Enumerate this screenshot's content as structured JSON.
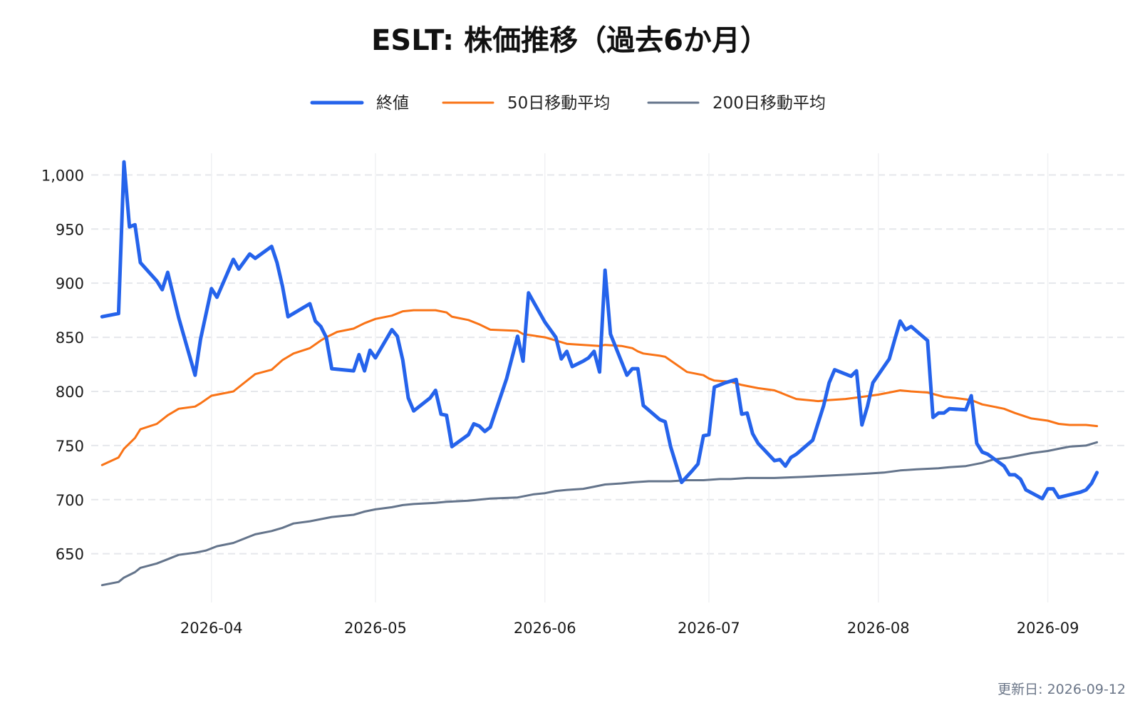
{
  "chart_data": {
    "type": "line",
    "title": "ESLT: 株価推移（過去6か月）",
    "xlabel": "",
    "ylabel": "",
    "updated": "更新日: 2026-09-12",
    "colors": {
      "close": "#2563eb",
      "ma50": "#f97316",
      "ma200": "#64748b",
      "grid": "#e5e7eb"
    },
    "ylim": [
      605,
      1020
    ],
    "y_ticks": [
      650,
      700,
      750,
      800,
      850,
      900,
      950,
      1000
    ],
    "y_tick_labels": [
      "650",
      "700",
      "750",
      "800",
      "850",
      "900",
      "950",
      "1,000"
    ],
    "xlim": [
      "2026-03-10",
      "2026-09-15"
    ],
    "x_ticks": [
      "2026-04-01",
      "2026-05-01",
      "2026-06-01",
      "2026-07-01",
      "2026-08-01",
      "2026-09-01"
    ],
    "x_tick_labels": [
      "2026-04",
      "2026-05",
      "2026-06",
      "2026-07",
      "2026-08",
      "2026-09"
    ],
    "grid": true,
    "legend_position": "top-center",
    "series": [
      {
        "name": "終値",
        "key": "close",
        "points": [
          [
            "2026-03-12",
            869
          ],
          [
            "2026-03-15",
            872
          ],
          [
            "2026-03-16",
            1012
          ],
          [
            "2026-03-17",
            952
          ],
          [
            "2026-03-18",
            954
          ],
          [
            "2026-03-19",
            919
          ],
          [
            "2026-03-22",
            902
          ],
          [
            "2026-03-23",
            894
          ],
          [
            "2026-03-24",
            910
          ],
          [
            "2026-03-26",
            868
          ],
          [
            "2026-03-29",
            815
          ],
          [
            "2026-03-30",
            848
          ],
          [
            "2026-04-01",
            895
          ],
          [
            "2026-04-02",
            887
          ],
          [
            "2026-04-05",
            922
          ],
          [
            "2026-04-06",
            913
          ],
          [
            "2026-04-08",
            927
          ],
          [
            "2026-04-09",
            923
          ],
          [
            "2026-04-12",
            934
          ],
          [
            "2026-04-13",
            919
          ],
          [
            "2026-04-14",
            897
          ],
          [
            "2026-04-15",
            869
          ],
          [
            "2026-04-19",
            881
          ],
          [
            "2026-04-20",
            865
          ],
          [
            "2026-04-21",
            860
          ],
          [
            "2026-04-22",
            850
          ],
          [
            "2026-04-23",
            821
          ],
          [
            "2026-04-27",
            819
          ],
          [
            "2026-04-28",
            834
          ],
          [
            "2026-04-29",
            819
          ],
          [
            "2026-04-30",
            838
          ],
          [
            "2026-05-01",
            831
          ],
          [
            "2026-05-04",
            857
          ],
          [
            "2026-05-05",
            851
          ],
          [
            "2026-05-06",
            829
          ],
          [
            "2026-05-07",
            794
          ],
          [
            "2026-05-08",
            782
          ],
          [
            "2026-05-11",
            794
          ],
          [
            "2026-05-12",
            801
          ],
          [
            "2026-05-13",
            779
          ],
          [
            "2026-05-14",
            778
          ],
          [
            "2026-05-15",
            749
          ],
          [
            "2026-05-18",
            760
          ],
          [
            "2026-05-19",
            770
          ],
          [
            "2026-05-20",
            768
          ],
          [
            "2026-05-21",
            763
          ],
          [
            "2026-05-22",
            767
          ],
          [
            "2026-05-25",
            812
          ],
          [
            "2026-05-27",
            851
          ],
          [
            "2026-05-28",
            828
          ],
          [
            "2026-05-29",
            891
          ],
          [
            "2026-05-30",
            882
          ],
          [
            "2026-06-01",
            864
          ],
          [
            "2026-06-03",
            850
          ],
          [
            "2026-06-04",
            830
          ],
          [
            "2026-06-05",
            837
          ],
          [
            "2026-06-06",
            823
          ],
          [
            "2026-06-08",
            828
          ],
          [
            "2026-06-09",
            831
          ],
          [
            "2026-06-10",
            837
          ],
          [
            "2026-06-11",
            818
          ],
          [
            "2026-06-12",
            912
          ],
          [
            "2026-06-13",
            853
          ],
          [
            "2026-06-16",
            815
          ],
          [
            "2026-06-17",
            821
          ],
          [
            "2026-06-18",
            821
          ],
          [
            "2026-06-19",
            787
          ],
          [
            "2026-06-22",
            774
          ],
          [
            "2026-06-23",
            772
          ],
          [
            "2026-06-24",
            749
          ],
          [
            "2026-06-26",
            716
          ],
          [
            "2026-06-28",
            727
          ],
          [
            "2026-06-29",
            733
          ],
          [
            "2026-06-30",
            759
          ],
          [
            "2026-07-01",
            760
          ],
          [
            "2026-07-02",
            804
          ],
          [
            "2026-07-04",
            808
          ],
          [
            "2026-07-06",
            811
          ],
          [
            "2026-07-07",
            779
          ],
          [
            "2026-07-08",
            780
          ],
          [
            "2026-07-09",
            761
          ],
          [
            "2026-07-10",
            752
          ],
          [
            "2026-07-13",
            736
          ],
          [
            "2026-07-14",
            737
          ],
          [
            "2026-07-15",
            731
          ],
          [
            "2026-07-16",
            739
          ],
          [
            "2026-07-17",
            742
          ],
          [
            "2026-07-20",
            755
          ],
          [
            "2026-07-22",
            787
          ],
          [
            "2026-07-23",
            808
          ],
          [
            "2026-07-24",
            820
          ],
          [
            "2026-07-27",
            814
          ],
          [
            "2026-07-28",
            819
          ],
          [
            "2026-07-29",
            769
          ],
          [
            "2026-07-30",
            786
          ],
          [
            "2026-07-31",
            808
          ],
          [
            "2026-08-03",
            830
          ],
          [
            "2026-08-04",
            848
          ],
          [
            "2026-08-05",
            865
          ],
          [
            "2026-08-06",
            857
          ],
          [
            "2026-08-07",
            860
          ],
          [
            "2026-08-10",
            847
          ],
          [
            "2026-08-11",
            776
          ],
          [
            "2026-08-12",
            780
          ],
          [
            "2026-08-13",
            780
          ],
          [
            "2026-08-14",
            784
          ],
          [
            "2026-08-17",
            783
          ],
          [
            "2026-08-18",
            796
          ],
          [
            "2026-08-19",
            752
          ],
          [
            "2026-08-20",
            744
          ],
          [
            "2026-08-21",
            742
          ],
          [
            "2026-08-24",
            731
          ],
          [
            "2026-08-25",
            723
          ],
          [
            "2026-08-26",
            723
          ],
          [
            "2026-08-27",
            719
          ],
          [
            "2026-08-28",
            709
          ],
          [
            "2026-08-31",
            701
          ],
          [
            "2026-09-01",
            710
          ],
          [
            "2026-09-02",
            710
          ],
          [
            "2026-09-03",
            702
          ],
          [
            "2026-09-07",
            707
          ],
          [
            "2026-09-08",
            709
          ],
          [
            "2026-09-09",
            715
          ],
          [
            "2026-09-10",
            725
          ]
        ]
      },
      {
        "name": "50日移動平均",
        "key": "ma50",
        "points": [
          [
            "2026-03-12",
            732
          ],
          [
            "2026-03-15",
            739
          ],
          [
            "2026-03-16",
            747
          ],
          [
            "2026-03-18",
            757
          ],
          [
            "2026-03-19",
            765
          ],
          [
            "2026-03-22",
            770
          ],
          [
            "2026-03-24",
            778
          ],
          [
            "2026-03-26",
            784
          ],
          [
            "2026-03-29",
            786
          ],
          [
            "2026-03-30",
            789
          ],
          [
            "2026-04-01",
            796
          ],
          [
            "2026-04-02",
            797
          ],
          [
            "2026-04-05",
            800
          ],
          [
            "2026-04-09",
            816
          ],
          [
            "2026-04-12",
            820
          ],
          [
            "2026-04-14",
            829
          ],
          [
            "2026-04-16",
            835
          ],
          [
            "2026-04-19",
            840
          ],
          [
            "2026-04-21",
            847
          ],
          [
            "2026-04-22",
            850
          ],
          [
            "2026-04-24",
            855
          ],
          [
            "2026-04-27",
            858
          ],
          [
            "2026-04-29",
            863
          ],
          [
            "2026-05-01",
            867
          ],
          [
            "2026-05-04",
            870
          ],
          [
            "2026-05-06",
            874
          ],
          [
            "2026-05-08",
            875
          ],
          [
            "2026-05-12",
            875
          ],
          [
            "2026-05-14",
            873
          ],
          [
            "2026-05-15",
            869
          ],
          [
            "2026-05-18",
            866
          ],
          [
            "2026-05-20",
            862
          ],
          [
            "2026-05-22",
            857
          ],
          [
            "2026-05-27",
            856
          ],
          [
            "2026-05-28",
            853
          ],
          [
            "2026-06-01",
            850
          ],
          [
            "2026-06-03",
            847
          ],
          [
            "2026-06-05",
            844
          ],
          [
            "2026-06-08",
            843
          ],
          [
            "2026-06-11",
            842
          ],
          [
            "2026-06-12",
            843
          ],
          [
            "2026-06-15",
            842
          ],
          [
            "2026-06-17",
            840
          ],
          [
            "2026-06-18",
            837
          ],
          [
            "2026-06-19",
            835
          ],
          [
            "2026-06-22",
            833
          ],
          [
            "2026-06-23",
            832
          ],
          [
            "2026-06-25",
            825
          ],
          [
            "2026-06-27",
            818
          ],
          [
            "2026-06-30",
            815
          ],
          [
            "2026-07-01",
            812
          ],
          [
            "2026-07-02",
            810
          ],
          [
            "2026-07-05",
            809
          ],
          [
            "2026-07-07",
            806
          ],
          [
            "2026-07-09",
            804
          ],
          [
            "2026-07-10",
            803
          ],
          [
            "2026-07-13",
            801
          ],
          [
            "2026-07-14",
            799
          ],
          [
            "2026-07-16",
            795
          ],
          [
            "2026-07-17",
            793
          ],
          [
            "2026-07-21",
            791
          ],
          [
            "2026-07-23",
            792
          ],
          [
            "2026-07-26",
            793
          ],
          [
            "2026-07-29",
            795
          ],
          [
            "2026-08-01",
            797
          ],
          [
            "2026-08-03",
            799
          ],
          [
            "2026-08-05",
            801
          ],
          [
            "2026-08-07",
            800
          ],
          [
            "2026-08-10",
            799
          ],
          [
            "2026-08-13",
            795
          ],
          [
            "2026-08-15",
            794
          ],
          [
            "2026-08-18",
            792
          ],
          [
            "2026-08-20",
            788
          ],
          [
            "2026-08-22",
            786
          ],
          [
            "2026-08-24",
            784
          ],
          [
            "2026-08-26",
            780
          ],
          [
            "2026-08-29",
            775
          ],
          [
            "2026-09-01",
            773
          ],
          [
            "2026-09-03",
            770
          ],
          [
            "2026-09-05",
            769
          ],
          [
            "2026-09-08",
            769
          ],
          [
            "2026-09-10",
            768
          ]
        ]
      },
      {
        "name": "200日移動平均",
        "key": "ma200",
        "points": [
          [
            "2026-03-12",
            621
          ],
          [
            "2026-03-15",
            624
          ],
          [
            "2026-03-16",
            628
          ],
          [
            "2026-03-18",
            633
          ],
          [
            "2026-03-19",
            637
          ],
          [
            "2026-03-22",
            641
          ],
          [
            "2026-03-24",
            645
          ],
          [
            "2026-03-26",
            649
          ],
          [
            "2026-03-29",
            651
          ],
          [
            "2026-03-31",
            653
          ],
          [
            "2026-04-02",
            657
          ],
          [
            "2026-04-05",
            660
          ],
          [
            "2026-04-08",
            666
          ],
          [
            "2026-04-09",
            668
          ],
          [
            "2026-04-12",
            671
          ],
          [
            "2026-04-14",
            674
          ],
          [
            "2026-04-16",
            678
          ],
          [
            "2026-04-19",
            680
          ],
          [
            "2026-04-21",
            682
          ],
          [
            "2026-04-23",
            684
          ],
          [
            "2026-04-27",
            686
          ],
          [
            "2026-04-29",
            689
          ],
          [
            "2026-05-01",
            691
          ],
          [
            "2026-05-04",
            693
          ],
          [
            "2026-05-06",
            695
          ],
          [
            "2026-05-08",
            696
          ],
          [
            "2026-05-12",
            697
          ],
          [
            "2026-05-14",
            698
          ],
          [
            "2026-05-18",
            699
          ],
          [
            "2026-05-20",
            700
          ],
          [
            "2026-05-22",
            701
          ],
          [
            "2026-05-27",
            702
          ],
          [
            "2026-05-29",
            704
          ],
          [
            "2026-05-30",
            705
          ],
          [
            "2026-06-01",
            706
          ],
          [
            "2026-06-03",
            708
          ],
          [
            "2026-06-05",
            709
          ],
          [
            "2026-06-08",
            710
          ],
          [
            "2026-06-10",
            712
          ],
          [
            "2026-06-12",
            714
          ],
          [
            "2026-06-15",
            715
          ],
          [
            "2026-06-17",
            716
          ],
          [
            "2026-06-20",
            717
          ],
          [
            "2026-06-24",
            717
          ],
          [
            "2026-06-27",
            718
          ],
          [
            "2026-06-30",
            718
          ],
          [
            "2026-07-03",
            719
          ],
          [
            "2026-07-05",
            719
          ],
          [
            "2026-07-08",
            720
          ],
          [
            "2026-07-13",
            720
          ],
          [
            "2026-07-18",
            721
          ],
          [
            "2026-07-22",
            722
          ],
          [
            "2026-07-26",
            723
          ],
          [
            "2026-07-30",
            724
          ],
          [
            "2026-08-02",
            725
          ],
          [
            "2026-08-05",
            727
          ],
          [
            "2026-08-08",
            728
          ],
          [
            "2026-08-12",
            729
          ],
          [
            "2026-08-14",
            730
          ],
          [
            "2026-08-17",
            731
          ],
          [
            "2026-08-20",
            734
          ],
          [
            "2026-08-22",
            737
          ],
          [
            "2026-08-25",
            739
          ],
          [
            "2026-08-27",
            741
          ],
          [
            "2026-08-29",
            743
          ],
          [
            "2026-09-01",
            745
          ],
          [
            "2026-09-03",
            747
          ],
          [
            "2026-09-05",
            749
          ],
          [
            "2026-09-08",
            750
          ],
          [
            "2026-09-10",
            753
          ]
        ]
      }
    ]
  }
}
